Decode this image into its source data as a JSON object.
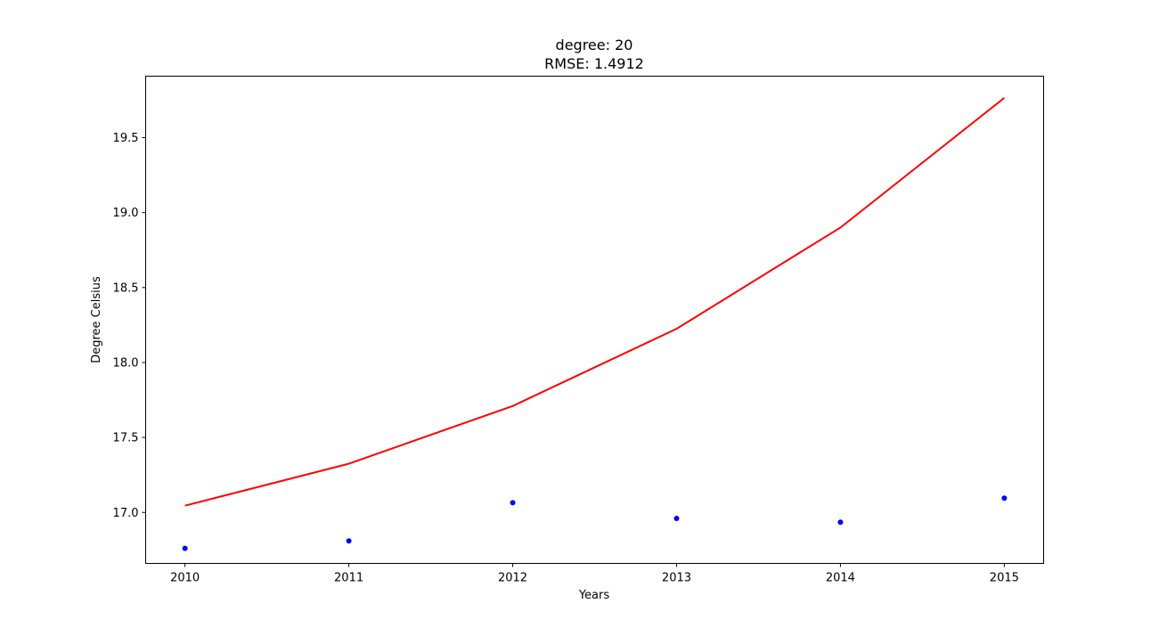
{
  "chart_data": {
    "type": "scatter",
    "title_lines": [
      "degree: 20",
      "RMSE: 1.4912"
    ],
    "xlabel": "Years",
    "ylabel": "Degree Celsius",
    "xlim": [
      2009.76,
      2015.24
    ],
    "ylim": [
      16.66,
      19.91
    ],
    "x_ticks": [
      2010,
      2011,
      2012,
      2013,
      2014,
      2015
    ],
    "x_tick_labels": [
      "2010",
      "2011",
      "2012",
      "2013",
      "2014",
      "2015"
    ],
    "y_ticks": [
      17.0,
      17.5,
      18.0,
      18.5,
      19.0,
      19.5
    ],
    "y_tick_labels": [
      "17.0",
      "17.5",
      "18.0",
      "18.5",
      "19.0",
      "19.5"
    ],
    "grid": false,
    "series": [
      {
        "kind": "scatter",
        "color": "#0000ff",
        "x": [
          2010,
          2011,
          2012,
          2013,
          2014,
          2015
        ],
        "y": [
          16.76,
          16.81,
          17.065,
          16.96,
          16.935,
          17.095
        ]
      },
      {
        "kind": "line",
        "color": "#ff0000",
        "x": [
          2010,
          2011,
          2012,
          2013,
          2014,
          2015
        ],
        "y": [
          17.045,
          17.325,
          17.71,
          18.225,
          18.9,
          19.765
        ]
      }
    ]
  }
}
